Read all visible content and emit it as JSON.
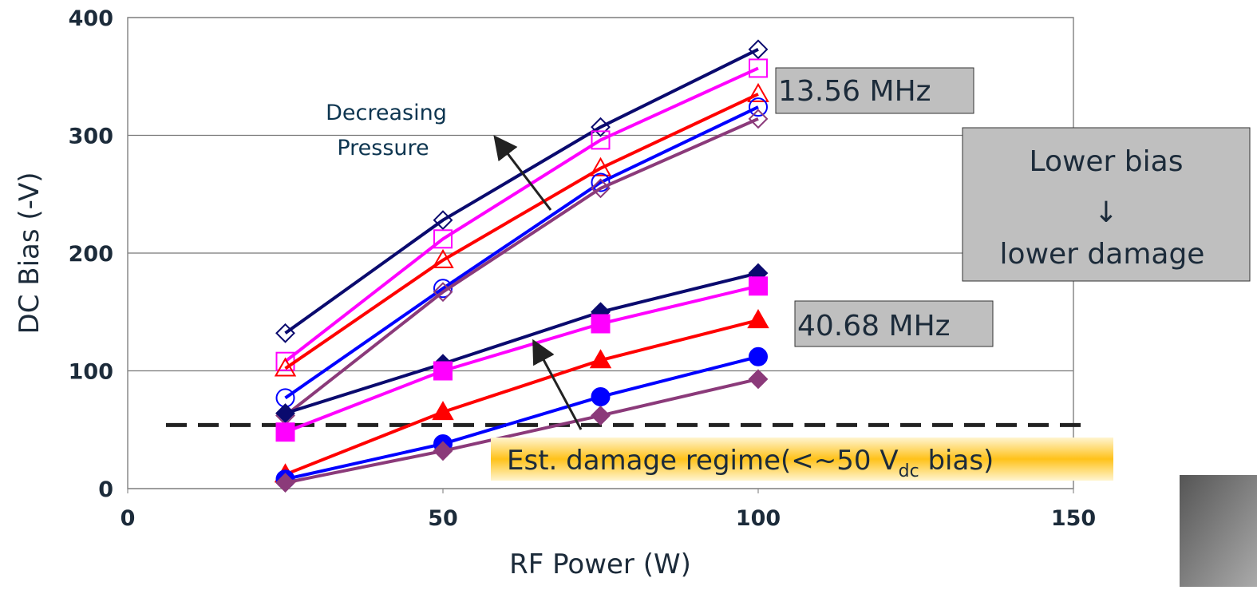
{
  "chart_data": {
    "type": "line",
    "x_label": "RF Power (W)",
    "y_label": "DC Bias (-V)",
    "x": [
      25,
      50,
      75,
      100
    ],
    "xlim": [
      0,
      150
    ],
    "xticks": [
      0,
      50,
      100,
      150
    ],
    "ylim": [
      0,
      400
    ],
    "yticks": [
      0,
      100,
      200,
      300,
      400
    ],
    "grid": true,
    "series": [
      {
        "color": "#0a0a6e",
        "marker": "diamond",
        "filled": false,
        "values": [
          132,
          228,
          307,
          373
        ]
      },
      {
        "color": "#ff00ff",
        "marker": "square",
        "filled": false,
        "values": [
          108,
          212,
          296,
          357
        ]
      },
      {
        "color": "#ff0000",
        "marker": "triangle",
        "filled": false,
        "values": [
          102,
          194,
          272,
          335
        ]
      },
      {
        "color": "#0000ff",
        "marker": "circle",
        "filled": false,
        "values": [
          77,
          170,
          260,
          324
        ]
      },
      {
        "color": "#8b3a7a",
        "marker": "diamond",
        "filled": false,
        "values": [
          62,
          167,
          255,
          314
        ]
      },
      {
        "color": "#0a0a6e",
        "marker": "diamond",
        "filled": true,
        "values": [
          64,
          106,
          150,
          183
        ]
      },
      {
        "color": "#ff00ff",
        "marker": "square",
        "filled": true,
        "values": [
          48,
          100,
          140,
          172
        ]
      },
      {
        "color": "#ff0000",
        "marker": "triangle",
        "filled": true,
        "values": [
          12,
          65,
          109,
          143
        ]
      },
      {
        "color": "#0000ff",
        "marker": "circle",
        "filled": true,
        "values": [
          8,
          38,
          78,
          112
        ]
      },
      {
        "color": "#8b3a7a",
        "marker": "diamond",
        "filled": true,
        "values": [
          5,
          32,
          62,
          93
        ]
      }
    ],
    "threshold": 54,
    "label_13": "13.56 MHz",
    "label_40": "40.68 MHz",
    "pressure_label": [
      "Decreasing",
      "Pressure"
    ],
    "bias_box": [
      "Lower bias",
      "↓",
      "lower damage"
    ],
    "damage_label": [
      "Est. damage regime(<~50 V",
      "dc",
      " bias)"
    ]
  }
}
